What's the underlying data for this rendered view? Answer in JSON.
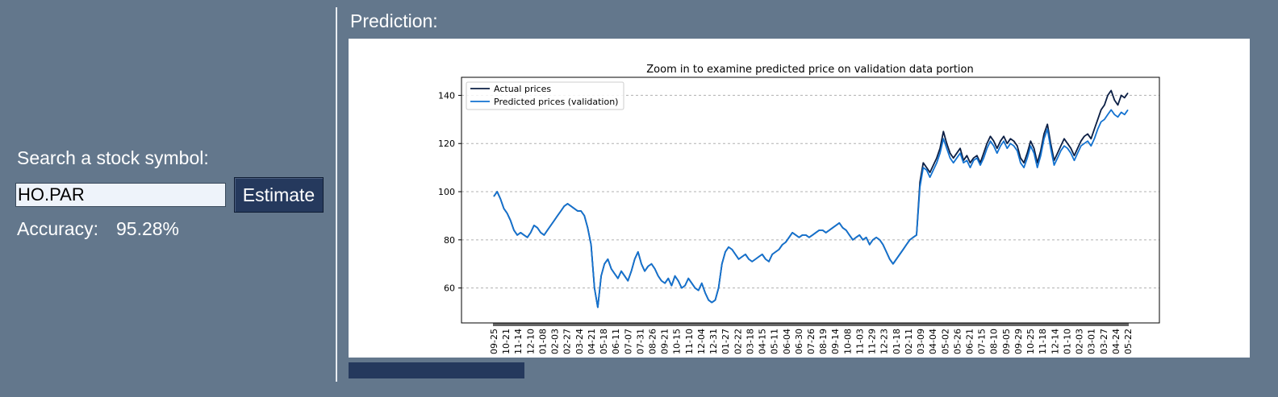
{
  "search": {
    "label": "Search a stock symbol:",
    "value": "HO.PAR"
  },
  "estimate_button": {
    "label": "Estimate"
  },
  "accuracy": {
    "label": "Accuracy:",
    "value": "95.28%"
  },
  "prediction": {
    "title": "Prediction:"
  },
  "colors": {
    "background": "#63778c",
    "button": "#25395d",
    "actual_line": "#0b1f45",
    "predicted_line": "#1372d0"
  },
  "chart_data": {
    "type": "line",
    "title": "Zoom in to examine predicted price on validation data portion",
    "xlabel": "",
    "ylabel": "",
    "ylim": [
      45.5,
      147.5
    ],
    "yticks": [
      60,
      80,
      100,
      120,
      140
    ],
    "grid": "horizontal dashed",
    "legend_position": "top-left",
    "x_tick_labels": [
      "09-25",
      "10-21",
      "11-14",
      "12-10",
      "01-08",
      "02-03",
      "02-27",
      "03-24",
      "04-21",
      "05-18",
      "06-11",
      "07-07",
      "07-31",
      "08-26",
      "09-21",
      "10-15",
      "11-10",
      "12-04",
      "12-31",
      "01-27",
      "02-22",
      "03-18",
      "04-15",
      "05-11",
      "06-04",
      "06-30",
      "07-26",
      "08-19",
      "09-14",
      "10-08",
      "11-03",
      "11-29",
      "12-23",
      "01-18",
      "02-11",
      "03-09",
      "04-04",
      "05-02",
      "05-26",
      "06-21",
      "07-15",
      "08-10",
      "09-05",
      "09-29",
      "10-25",
      "11-18",
      "12-14",
      "01-10",
      "02-03",
      "03-01",
      "03-27",
      "04-24",
      "05-22"
    ],
    "series": [
      {
        "name": "Actual prices",
        "color": "#0b1f45",
        "values": [
          98,
          100,
          97,
          93,
          91,
          88,
          84,
          82,
          83,
          82,
          81,
          83,
          86,
          85,
          83,
          82,
          84,
          86,
          88,
          90,
          92,
          94,
          95,
          94,
          93,
          92,
          92,
          90,
          85,
          78,
          60,
          52,
          65,
          70,
          72,
          68,
          66,
          64,
          67,
          65,
          63,
          67,
          72,
          75,
          70,
          67,
          69,
          70,
          68,
          65,
          63,
          62,
          64,
          61,
          65,
          63,
          60,
          61,
          64,
          62,
          60,
          59,
          62,
          58,
          55,
          54,
          55,
          60,
          70,
          75,
          77,
          76,
          74,
          72,
          73,
          74,
          72,
          71,
          72,
          73,
          74,
          72,
          71,
          74,
          75,
          76,
          78,
          79,
          81,
          83,
          82,
          81,
          82,
          82,
          81,
          82,
          83,
          84,
          84,
          83,
          84,
          85,
          86,
          87,
          85,
          84,
          82,
          80,
          81,
          82,
          80,
          81,
          78,
          80,
          81,
          80,
          78,
          75,
          72,
          70,
          72,
          74,
          76,
          78,
          80,
          81,
          82,
          104,
          112,
          110,
          108,
          111,
          114,
          118,
          125,
          120,
          116,
          114,
          116,
          118,
          113,
          115,
          112,
          114,
          115,
          112,
          116,
          120,
          123,
          121,
          118,
          121,
          123,
          120,
          122,
          121,
          119,
          114,
          112,
          116,
          121,
          118,
          112,
          117,
          124,
          128,
          120,
          113,
          116,
          119,
          122,
          120,
          118,
          115,
          118,
          121,
          123,
          124,
          122,
          126,
          130,
          134,
          136,
          140,
          142,
          138,
          136,
          140,
          139,
          141
        ]
      },
      {
        "name": "Predicted prices (validation)",
        "color": "#1372d0",
        "values": [
          98,
          100,
          97,
          93,
          91,
          88,
          84,
          82,
          83,
          82,
          81,
          83,
          86,
          85,
          83,
          82,
          84,
          86,
          88,
          90,
          92,
          94,
          95,
          94,
          93,
          92,
          92,
          90,
          85,
          78,
          60,
          52,
          65,
          70,
          72,
          68,
          66,
          64,
          67,
          65,
          63,
          67,
          72,
          75,
          70,
          67,
          69,
          70,
          68,
          65,
          63,
          62,
          64,
          61,
          65,
          63,
          60,
          61,
          64,
          62,
          60,
          59,
          62,
          58,
          55,
          54,
          55,
          60,
          70,
          75,
          77,
          76,
          74,
          72,
          73,
          74,
          72,
          71,
          72,
          73,
          74,
          72,
          71,
          74,
          75,
          76,
          78,
          79,
          81,
          83,
          82,
          81,
          82,
          82,
          81,
          82,
          83,
          84,
          84,
          83,
          84,
          85,
          86,
          87,
          85,
          84,
          82,
          80,
          81,
          82,
          80,
          81,
          78,
          80,
          81,
          80,
          78,
          75,
          72,
          70,
          72,
          74,
          76,
          78,
          80,
          81,
          82,
          102,
          110,
          109,
          106,
          109,
          112,
          116,
          122,
          118,
          114,
          112,
          114,
          116,
          112,
          113,
          110,
          113,
          114,
          111,
          114,
          118,
          121,
          119,
          116,
          119,
          121,
          118,
          120,
          119,
          117,
          112,
          110,
          114,
          119,
          116,
          110,
          115,
          122,
          126,
          118,
          111,
          114,
          117,
          119,
          118,
          116,
          113,
          116,
          119,
          120,
          121,
          119,
          122,
          126,
          129,
          130,
          132,
          134,
          132,
          131,
          133,
          132,
          134
        ]
      }
    ]
  }
}
